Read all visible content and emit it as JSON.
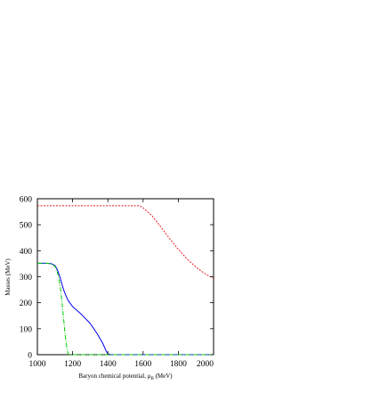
{
  "chart_data": {
    "type": "line",
    "title": "",
    "xlabel": "Baryon chemical potential, μ",
    "xlabel_sub": "B",
    "xlabel_unit": " (MeV)",
    "ylabel": "Masses (MeV)",
    "xlim": [
      1000,
      2000
    ],
    "ylim": [
      0,
      600
    ],
    "x_ticks": [
      1000,
      1200,
      1400,
      1600,
      1800,
      2000
    ],
    "y_ticks": [
      0,
      100,
      200,
      300,
      400,
      500,
      600
    ],
    "grid": false,
    "series": [
      {
        "color": "#e41a1c",
        "dash": "2,1.5",
        "x": [
          1000,
          1200,
          1400,
          1580,
          1600,
          1650,
          1700,
          1750,
          1800,
          1850,
          1900,
          1950,
          2000
        ],
        "y": [
          573,
          573,
          573,
          573,
          565,
          535,
          492,
          447,
          405,
          368,
          337,
          312,
          293
        ]
      },
      {
        "color": "#0000ee",
        "dash": "",
        "x": [
          1000,
          1050,
          1080,
          1100,
          1110,
          1120,
          1130,
          1140,
          1150,
          1160,
          1175,
          1200,
          1250,
          1300,
          1340,
          1370,
          1390,
          1400,
          1420,
          1500,
          2000
        ],
        "y": [
          352,
          352,
          350,
          343,
          332,
          315,
          295,
          270,
          248,
          230,
          208,
          185,
          155,
          120,
          80,
          45,
          15,
          2,
          0,
          0,
          0
        ]
      },
      {
        "color": "#00cc00",
        "dash": "5,1.5,1,1.5",
        "x": [
          1000,
          1050,
          1080,
          1100,
          1110,
          1120,
          1130,
          1140,
          1150,
          1160,
          1170,
          1175,
          1180,
          1200,
          2000
        ],
        "y": [
          352,
          352,
          349,
          340,
          325,
          300,
          260,
          200,
          130,
          60,
          15,
          3,
          0,
          0,
          0
        ]
      }
    ]
  }
}
